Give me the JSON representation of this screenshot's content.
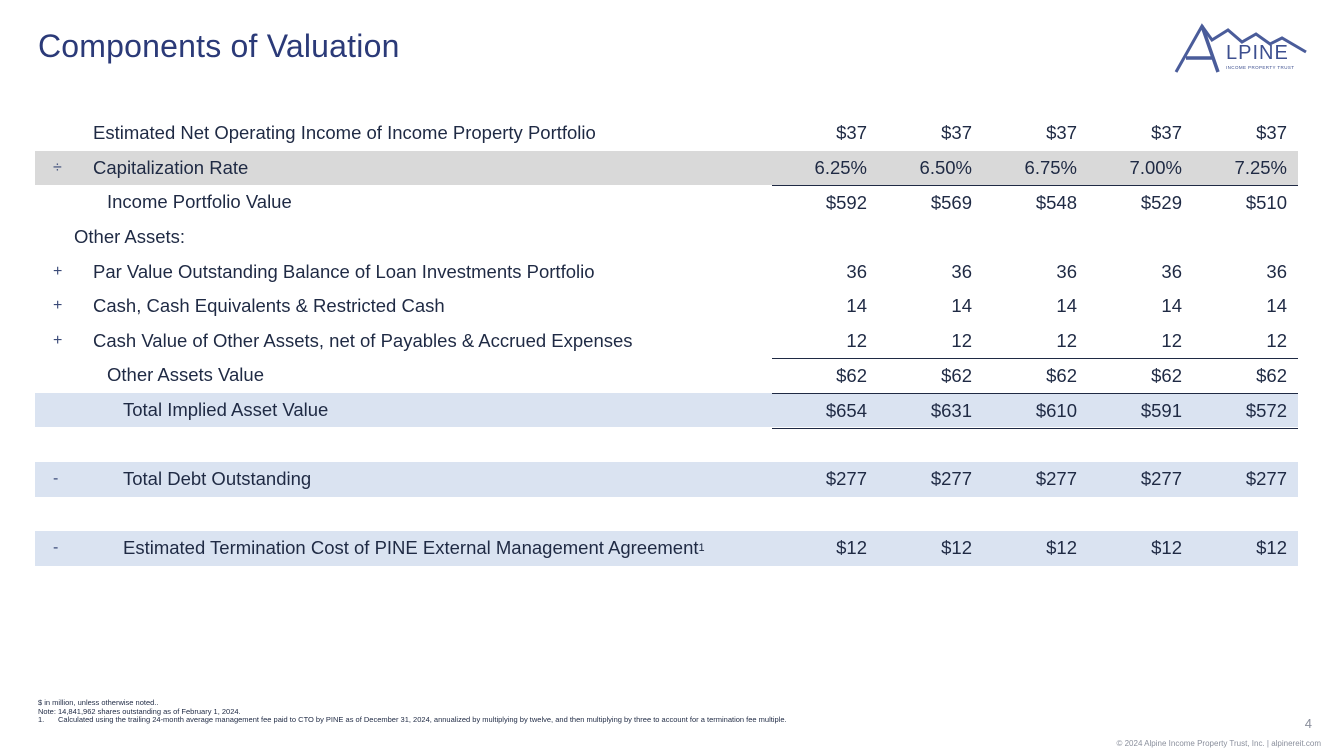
{
  "title": "Components of Valuation",
  "logo": {
    "word": "LPINE",
    "letter": "A",
    "subtitle": "INCOME PROPERTY TRUST"
  },
  "rows": {
    "noi": {
      "label": "Estimated Net Operating Income of Income Property Portfolio",
      "values": [
        "$37",
        "$37",
        "$37",
        "$37",
        "$37"
      ]
    },
    "cap": {
      "op": "÷",
      "label": "Capitalization Rate",
      "values": [
        "6.25%",
        "6.50%",
        "6.75%",
        "7.00%",
        "7.25%"
      ]
    },
    "ipv": {
      "label": "Income Portfolio Value",
      "values": [
        "$592",
        "$569",
        "$548",
        "$529",
        "$510"
      ]
    },
    "other": {
      "label": "Other Assets:"
    },
    "loan": {
      "op": "+",
      "label": "Par Value Outstanding Balance of Loan Investments Portfolio",
      "values": [
        "36",
        "36",
        "36",
        "36",
        "36"
      ]
    },
    "cash": {
      "op": "+",
      "label": "Cash, Cash Equivalents & Restricted Cash",
      "values": [
        "14",
        "14",
        "14",
        "14",
        "14"
      ]
    },
    "oa": {
      "op": "+",
      "label": "Cash Value of Other Assets, net of Payables & Accrued Expenses",
      "values": [
        "12",
        "12",
        "12",
        "12",
        "12"
      ]
    },
    "oav": {
      "label": "Other Assets Value",
      "values": [
        "$62",
        "$62",
        "$62",
        "$62",
        "$62"
      ]
    },
    "tav": {
      "label": "Total Implied Asset Value",
      "values": [
        "$654",
        "$631",
        "$610",
        "$591",
        "$572"
      ]
    },
    "debt": {
      "op": "-",
      "label": "Total Debt Outstanding",
      "values": [
        "$277",
        "$277",
        "$277",
        "$277",
        "$277"
      ]
    },
    "term": {
      "op": "-",
      "label": "Estimated Termination Cost of PINE External Management Agreement",
      "sup": "1",
      "values": [
        "$12",
        "$12",
        "$12",
        "$12",
        "$12"
      ]
    }
  },
  "notes": {
    "line1": "$ in million, unless otherwise noted..",
    "line2": "Note: 14,841,962 shares outstanding as of February 1, 2024.",
    "fn_num": "1.",
    "fn_text": "Calculated using the trailing 24-month average management fee paid to CTO by PINE as of December 31, 2024, annualized by multiplying by twelve, and then multiplying by three to account for a termination fee multiple."
  },
  "page_number": "4",
  "copyright": "© 2024 Alpine Income Property Trust, Inc.  |  alpinereit.com"
}
